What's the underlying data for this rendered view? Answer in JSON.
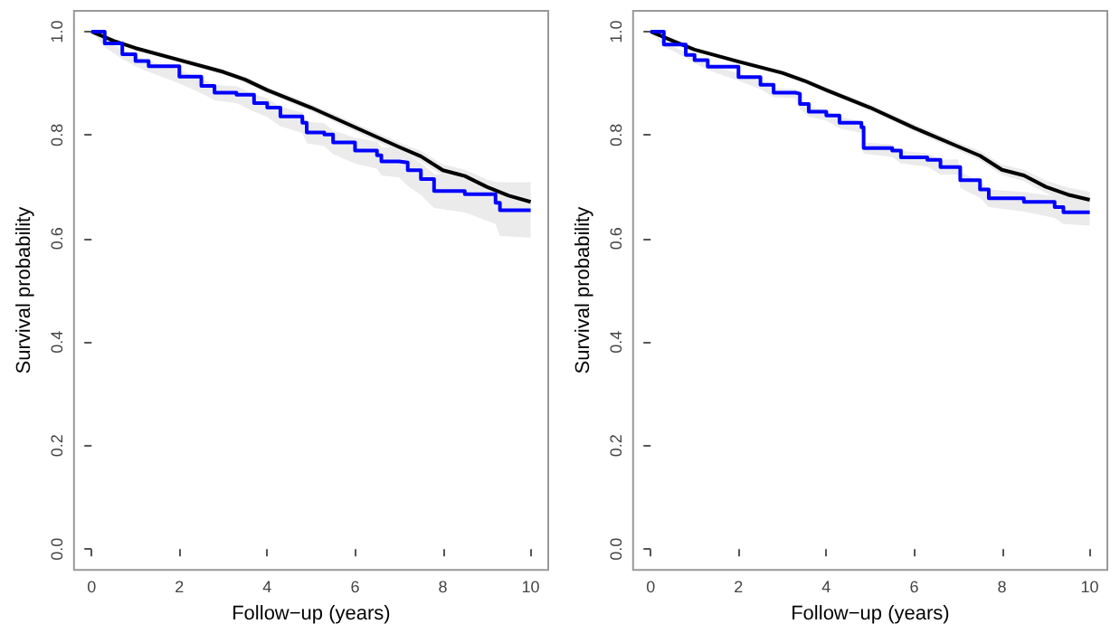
{
  "chart_data": [
    {
      "type": "step",
      "xlabel": "Follow−up (years)",
      "ylabel": "Survival probability",
      "xlim": [
        -0.4,
        10.4
      ],
      "ylim": [
        -0.04,
        1.04
      ],
      "xticks": [
        0,
        2,
        4,
        6,
        8,
        10
      ],
      "yticks": [
        {
          "value": 0,
          "label": "0.0"
        },
        {
          "value": 0.2,
          "label": "0.2"
        },
        {
          "value": 0.4,
          "label": "0.4"
        },
        {
          "value": 0.6,
          "label": "0.6"
        },
        {
          "value": 0.8,
          "label": "0.8"
        },
        {
          "value": 1,
          "label": "1.0"
        }
      ],
      "grid": false,
      "series": [
        {
          "type": "line",
          "color": "#000000",
          "x": [
            0,
            0.5,
            1,
            2,
            3,
            3.5,
            4,
            5,
            6,
            7,
            7.5,
            8,
            8.5,
            9,
            9.5,
            10
          ],
          "values": [
            1,
            0.982,
            0.968,
            0.945,
            0.922,
            0.907,
            0.887,
            0.853,
            0.815,
            0.777,
            0.759,
            0.732,
            0.721,
            0.7,
            0.683,
            0.671
          ],
          "lower": [
            1,
            0.979,
            0.964,
            0.94,
            0.917,
            0.901,
            0.881,
            0.846,
            0.807,
            0.768,
            0.749,
            0.721,
            0.709,
            0.686,
            0.667,
            0.653
          ],
          "upper": [
            1,
            0.985,
            0.972,
            0.95,
            0.927,
            0.913,
            0.893,
            0.86,
            0.823,
            0.786,
            0.769,
            0.743,
            0.733,
            0.714,
            0.699,
            0.689
          ]
        },
        {
          "color": "#0000ff",
          "x": [
            0,
            0.3,
            0.7,
            1,
            1.3,
            2,
            2.5,
            2.8,
            3.3,
            3.7,
            4,
            4.3,
            4.8,
            4.9,
            5.3,
            5.5,
            6,
            6.5,
            6.6,
            7,
            7.2,
            7.5,
            7.8,
            8.5,
            9.2,
            9.3,
            10
          ],
          "values": [
            1,
            0.977,
            0.956,
            0.943,
            0.933,
            0.913,
            0.895,
            0.882,
            0.878,
            0.862,
            0.853,
            0.836,
            0.824,
            0.805,
            0.801,
            0.786,
            0.77,
            0.761,
            0.749,
            0.747,
            0.732,
            0.715,
            0.692,
            0.686,
            0.669,
            0.655,
            0.655
          ],
          "lower": [
            1,
            0.97,
            0.947,
            0.933,
            0.922,
            0.9,
            0.881,
            0.867,
            0.862,
            0.845,
            0.835,
            0.817,
            0.804,
            0.784,
            0.779,
            0.763,
            0.745,
            0.735,
            0.722,
            0.718,
            0.702,
            0.684,
            0.659,
            0.651,
            0.628,
            0.605,
            0.602
          ],
          "upper": [
            1,
            0.984,
            0.965,
            0.953,
            0.944,
            0.926,
            0.909,
            0.897,
            0.894,
            0.879,
            0.871,
            0.855,
            0.844,
            0.826,
            0.823,
            0.809,
            0.795,
            0.787,
            0.776,
            0.776,
            0.762,
            0.746,
            0.725,
            0.721,
            0.71,
            0.709,
            0.709
          ]
        }
      ]
    },
    {
      "type": "step",
      "xlabel": "Follow−up (years)",
      "ylabel": "Survival probability",
      "xlim": [
        -0.4,
        10.4
      ],
      "ylim": [
        -0.04,
        1.04
      ],
      "xticks": [
        0,
        2,
        4,
        6,
        8,
        10
      ],
      "yticks": [
        {
          "value": 0,
          "label": "0.0"
        },
        {
          "value": 0.2,
          "label": "0.2"
        },
        {
          "value": 0.4,
          "label": "0.4"
        },
        {
          "value": 0.6,
          "label": "0.6"
        },
        {
          "value": 0.8,
          "label": "0.8"
        },
        {
          "value": 1,
          "label": "1.0"
        }
      ],
      "grid": false,
      "series": [
        {
          "type": "line",
          "color": "#000000",
          "x": [
            0,
            0.5,
            1,
            2,
            3,
            3.5,
            4,
            5,
            6,
            7,
            7.5,
            8,
            8.5,
            9,
            9.5,
            10
          ],
          "values": [
            1,
            0.982,
            0.965,
            0.942,
            0.92,
            0.905,
            0.887,
            0.853,
            0.814,
            0.778,
            0.76,
            0.733,
            0.722,
            0.7,
            0.685,
            0.675
          ],
          "lower": [
            1,
            0.98,
            0.962,
            0.938,
            0.916,
            0.9,
            0.882,
            0.847,
            0.807,
            0.77,
            0.751,
            0.723,
            0.711,
            0.688,
            0.671,
            0.66
          ],
          "upper": [
            1,
            0.984,
            0.968,
            0.946,
            0.924,
            0.91,
            0.892,
            0.859,
            0.821,
            0.786,
            0.769,
            0.743,
            0.733,
            0.712,
            0.699,
            0.69
          ]
        },
        {
          "color": "#0000ff",
          "x": [
            0,
            0.3,
            0.8,
            1,
            1.3,
            2,
            2.5,
            2.8,
            3.3,
            3.4,
            3.6,
            4,
            4.3,
            4.8,
            4.85,
            5.5,
            5.7,
            6.3,
            6.6,
            7,
            7.05,
            7.5,
            7.7,
            8.5,
            9.2,
            9.4,
            10
          ],
          "values": [
            1,
            0.975,
            0.955,
            0.945,
            0.932,
            0.912,
            0.897,
            0.882,
            0.88,
            0.86,
            0.845,
            0.838,
            0.824,
            0.815,
            0.775,
            0.77,
            0.757,
            0.752,
            0.738,
            0.738,
            0.713,
            0.695,
            0.678,
            0.671,
            0.661,
            0.651,
            0.651
          ],
          "lower": [
            1,
            0.971,
            0.95,
            0.939,
            0.926,
            0.905,
            0.889,
            0.873,
            0.871,
            0.851,
            0.835,
            0.828,
            0.813,
            0.804,
            0.764,
            0.758,
            0.745,
            0.739,
            0.724,
            0.723,
            0.698,
            0.679,
            0.661,
            0.652,
            0.64,
            0.628,
            0.625
          ],
          "upper": [
            1,
            0.979,
            0.96,
            0.951,
            0.938,
            0.919,
            0.905,
            0.891,
            0.889,
            0.869,
            0.855,
            0.848,
            0.835,
            0.826,
            0.786,
            0.782,
            0.769,
            0.765,
            0.752,
            0.753,
            0.728,
            0.711,
            0.695,
            0.69,
            0.682,
            0.674,
            0.67
          ]
        }
      ]
    }
  ]
}
